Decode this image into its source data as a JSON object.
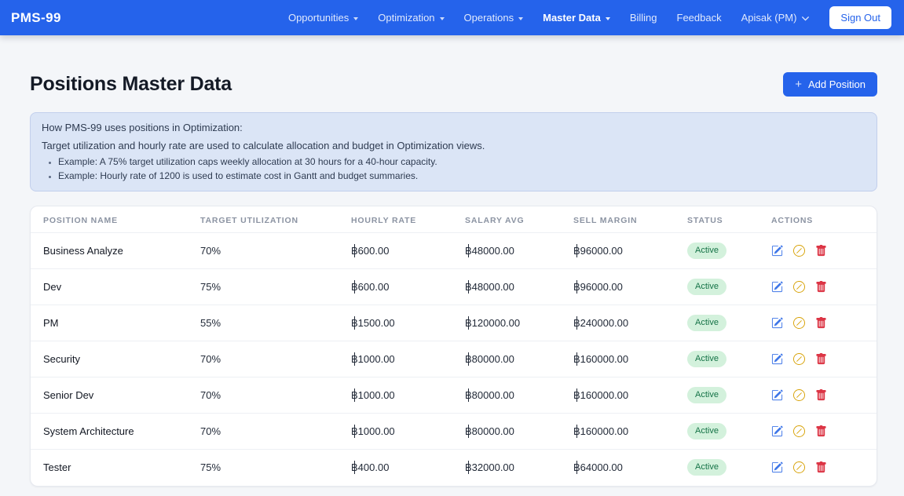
{
  "colors": {
    "navbar_bg": "#2563eb",
    "accent_blue": "#2563eb",
    "info_box_bg": "#dbe5f6",
    "info_box_border": "#c2cfec",
    "badge_active_bg": "#d3f1dc",
    "badge_active_text": "#157347",
    "edit_icon": "#3e76e8",
    "deactivate_icon": "#d7a104",
    "delete_icon": "#dc3545"
  },
  "navbar": {
    "brand": "PMS-99",
    "items": [
      {
        "label": "Opportunities",
        "dropdown": true,
        "active": false
      },
      {
        "label": "Optimization",
        "dropdown": true,
        "active": false
      },
      {
        "label": "Operations",
        "dropdown": true,
        "active": false
      },
      {
        "label": "Master Data",
        "dropdown": true,
        "active": true
      },
      {
        "label": "Billing",
        "dropdown": false,
        "active": false
      },
      {
        "label": "Feedback",
        "dropdown": false,
        "active": false
      }
    ],
    "user_menu": "Apisak (PM)",
    "sign_out": "Sign Out"
  },
  "page": {
    "title": "Positions Master Data",
    "add_button": "Add Position",
    "add_button_icon": "+"
  },
  "info_box": {
    "heading": "How PMS-99 uses positions in Optimization:",
    "body": "Target utilization and hourly rate are used to calculate allocation and budget in Optimization views.",
    "bullets": [
      "Example: A 75% target utilization caps weekly allocation at 30 hours for a 40-hour capacity.",
      "Example: Hourly rate of 1200 is used to estimate cost in Gantt and budget summaries."
    ]
  },
  "table": {
    "columns": [
      "POSITION NAME",
      "TARGET UTILIZATION",
      "HOURLY RATE",
      "SALARY AVG",
      "SELL MARGIN",
      "STATUS",
      "ACTIONS"
    ],
    "rows": [
      {
        "name": "Business Analyze",
        "target_utilization": "70%",
        "hourly_rate": "฿600.00",
        "salary_avg": "฿48000.00",
        "sell_margin": "฿96000.00",
        "status": "Active"
      },
      {
        "name": "Dev",
        "target_utilization": "75%",
        "hourly_rate": "฿600.00",
        "salary_avg": "฿48000.00",
        "sell_margin": "฿96000.00",
        "status": "Active"
      },
      {
        "name": "PM",
        "target_utilization": "55%",
        "hourly_rate": "฿1500.00",
        "salary_avg": "฿120000.00",
        "sell_margin": "฿240000.00",
        "status": "Active"
      },
      {
        "name": "Security",
        "target_utilization": "70%",
        "hourly_rate": "฿1000.00",
        "salary_avg": "฿80000.00",
        "sell_margin": "฿160000.00",
        "status": "Active"
      },
      {
        "name": "Senior Dev",
        "target_utilization": "70%",
        "hourly_rate": "฿1000.00",
        "salary_avg": "฿80000.00",
        "sell_margin": "฿160000.00",
        "status": "Active"
      },
      {
        "name": "System Architecture",
        "target_utilization": "70%",
        "hourly_rate": "฿1000.00",
        "salary_avg": "฿80000.00",
        "sell_margin": "฿160000.00",
        "status": "Active"
      },
      {
        "name": "Tester",
        "target_utilization": "75%",
        "hourly_rate": "฿400.00",
        "salary_avg": "฿32000.00",
        "sell_margin": "฿64000.00",
        "status": "Active"
      }
    ]
  }
}
